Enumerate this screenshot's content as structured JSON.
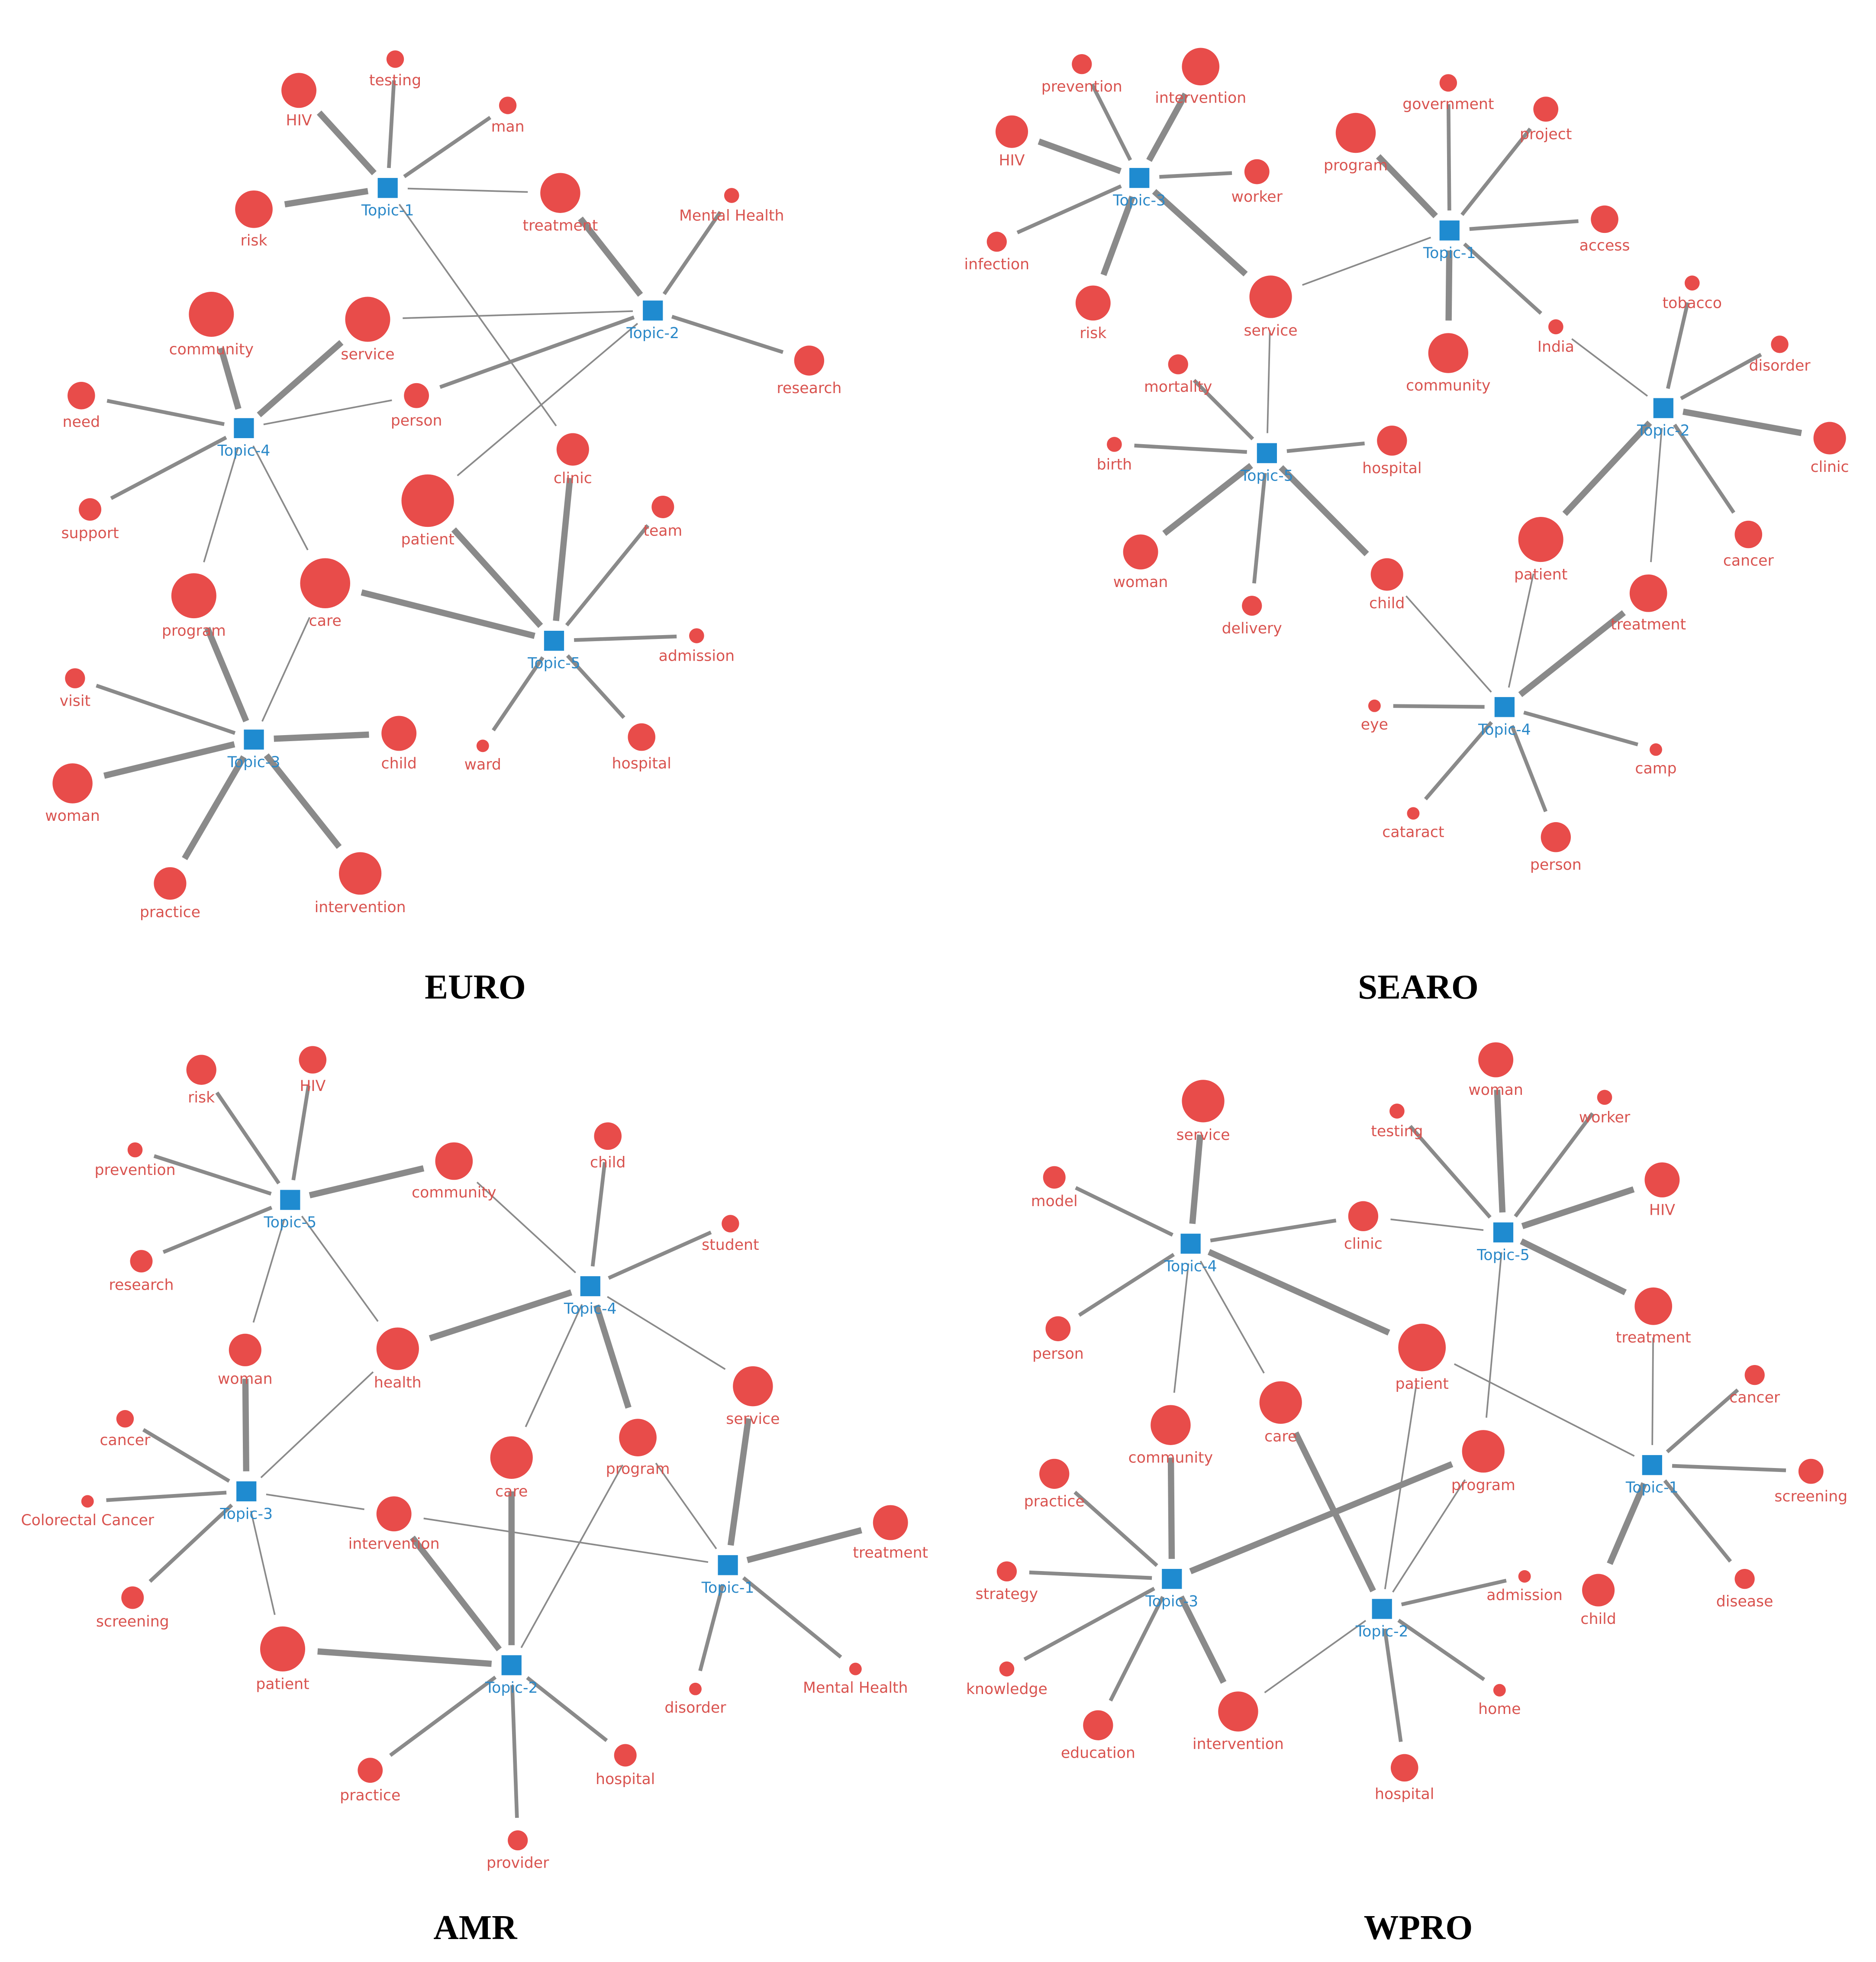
{
  "panels": [
    {
      "caption": "EURO",
      "topics": [
        "Topic-1",
        "Topic-2",
        "Topic-3",
        "Topic-4",
        "Topic-5"
      ],
      "terms": [
        "testing",
        "HIV",
        "man",
        "risk",
        "treatment",
        "Mental Health",
        "community",
        "service",
        "research",
        "need",
        "person",
        "clinic",
        "support",
        "patient",
        "team",
        "care",
        "program",
        "admission",
        "visit",
        "child",
        "ward",
        "hospital",
        "woman",
        "practice",
        "intervention"
      ]
    },
    {
      "caption": "SEARO",
      "topics": [
        "Topic-1",
        "Topic-2",
        "Topic-3",
        "Topic-4",
        "Topic-5"
      ],
      "terms": [
        "prevention",
        "intervention",
        "HIV",
        "worker",
        "infection",
        "risk",
        "service",
        "government",
        "project",
        "program",
        "access",
        "community",
        "India",
        "tobacco",
        "disorder",
        "clinic",
        "cancer",
        "patient",
        "treatment",
        "mortality",
        "birth",
        "hospital",
        "woman",
        "delivery",
        "child",
        "eye",
        "camp",
        "cataract",
        "person"
      ]
    },
    {
      "caption": "AMR",
      "topics": [
        "Topic-1",
        "Topic-2",
        "Topic-3",
        "Topic-4",
        "Topic-5"
      ],
      "terms": [
        "risk",
        "HIV",
        "prevention",
        "community",
        "research",
        "child",
        "student",
        "woman",
        "health",
        "service",
        "care",
        "program",
        "cancer",
        "Colorectal Cancer",
        "intervention",
        "treatment",
        "screening",
        "patient",
        "disorder",
        "Mental Health",
        "hospital",
        "practice",
        "provider"
      ]
    },
    {
      "caption": "WPRO",
      "topics": [
        "Topic-1",
        "Topic-2",
        "Topic-3",
        "Topic-4",
        "Topic-5"
      ],
      "terms": [
        "service",
        "model",
        "woman",
        "testing",
        "worker",
        "HIV",
        "clinic",
        "treatment",
        "person",
        "patient",
        "community",
        "care",
        "program",
        "cancer",
        "screening",
        "practice",
        "child",
        "disease",
        "strategy",
        "admission",
        "knowledge",
        "home",
        "intervention",
        "education",
        "hospital"
      ]
    }
  ]
}
